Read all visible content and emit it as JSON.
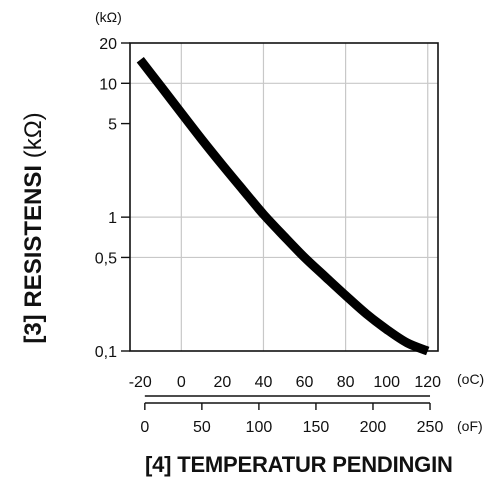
{
  "chart_data": {
    "type": "line",
    "y_unit_label": "(kΩ)",
    "y_axis_title": {
      "prefix": "[3]",
      "bold": "RESISTENSI",
      "normal": "(kΩ)"
    },
    "x_axis_title": "[4] TEMPERATUR PENDINGIN",
    "y_scale": "log",
    "ylim": [
      0.1,
      20
    ],
    "y_ticks": [
      {
        "value": 20,
        "label": "20"
      },
      {
        "value": 10,
        "label": "10"
      },
      {
        "value": 5,
        "label": "5"
      },
      {
        "value": 1,
        "label": "1"
      },
      {
        "value": 0.5,
        "label": "0,5"
      },
      {
        "value": 0.1,
        "label": "0,1"
      }
    ],
    "x_celsius": {
      "unit": "(oC)",
      "ticks": [
        -20,
        0,
        20,
        40,
        60,
        80,
        100,
        120
      ],
      "tick_labels": [
        "-20",
        "0",
        "20",
        "40",
        "60",
        "80",
        "100",
        "120"
      ],
      "range": [
        -25,
        125
      ],
      "grid_at": [
        0,
        40,
        80,
        120
      ]
    },
    "x_fahrenheit": {
      "unit": "(oF)",
      "ticks": [
        0,
        50,
        100,
        150,
        200,
        250
      ],
      "tick_labels": [
        "0",
        "50",
        "100",
        "150",
        "200",
        "250"
      ]
    },
    "grid_y_at": [
      10,
      1,
      0.5
    ],
    "series": [
      {
        "x": [
          -20,
          -10,
          0,
          10,
          20,
          30,
          40,
          50,
          60,
          70,
          80,
          90,
          100,
          110,
          120
        ],
        "values": [
          15,
          9.5,
          6,
          3.8,
          2.45,
          1.6,
          1.05,
          0.72,
          0.5,
          0.36,
          0.26,
          0.19,
          0.145,
          0.115,
          0.1
        ]
      }
    ]
  }
}
